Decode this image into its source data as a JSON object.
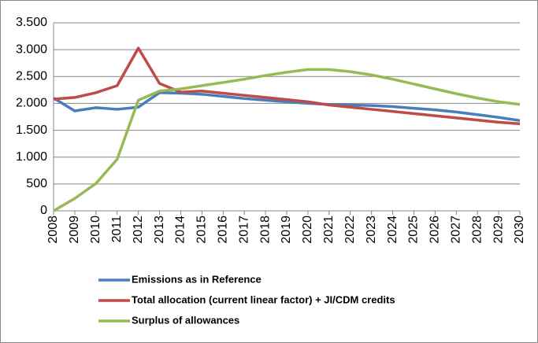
{
  "chart_data": {
    "type": "line",
    "categories": [
      "2008",
      "2009",
      "2010",
      "2011",
      "2012",
      "2013",
      "2014",
      "2015",
      "2016",
      "2017",
      "2018",
      "2019",
      "2020",
      "2021",
      "2022",
      "2023",
      "2024",
      "2025",
      "2026",
      "2027",
      "2028",
      "2029",
      "2030"
    ],
    "series": [
      {
        "name": "Emissions as in Reference",
        "color": "#4a7ebb",
        "values": [
          2100,
          1860,
          1920,
          1890,
          1930,
          2200,
          2190,
          2170,
          2130,
          2090,
          2060,
          2030,
          2000,
          1980,
          1970,
          1960,
          1940,
          1910,
          1880,
          1840,
          1790,
          1740,
          1680
        ]
      },
      {
        "name": "Total allocation (current linear factor) + JI/CDM credits",
        "color": "#be4b48",
        "values": [
          2080,
          2110,
          2200,
          2330,
          3030,
          2370,
          2210,
          2230,
          2190,
          2150,
          2110,
          2070,
          2030,
          1970,
          1930,
          1890,
          1850,
          1810,
          1770,
          1730,
          1690,
          1650,
          1620
        ]
      },
      {
        "name": "Surplus of allowances",
        "color": "#98b954",
        "values": [
          0,
          230,
          510,
          960,
          2060,
          2230,
          2270,
          2330,
          2390,
          2450,
          2520,
          2580,
          2630,
          2630,
          2590,
          2530,
          2450,
          2360,
          2270,
          2180,
          2100,
          2030,
          1980
        ]
      }
    ],
    "ylim": [
      0,
      3500
    ],
    "yticks": [
      0,
      500,
      {
        "value": 1000,
        "label": "1.000"
      },
      {
        "value": 1500,
        "label": "1.500"
      },
      {
        "value": 2000,
        "label": "2.000"
      },
      {
        "value": 2500,
        "label": "2.500"
      },
      {
        "value": 3000,
        "label": "3.000"
      },
      {
        "value": 3500,
        "label": "3.500"
      }
    ],
    "grid": true,
    "legend": "bottom"
  }
}
